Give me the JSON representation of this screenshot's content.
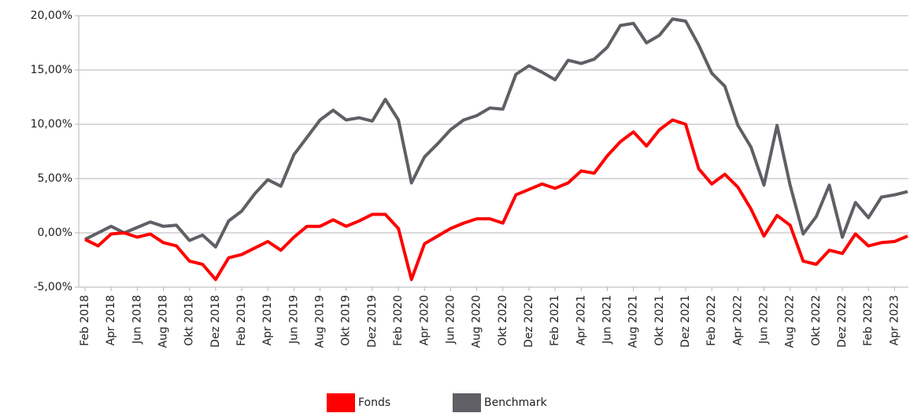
{
  "chart_data": {
    "type": "line",
    "categories": [
      "Feb 2018",
      null,
      "Apr 2018",
      null,
      "Jun 2018",
      null,
      "Aug 2018",
      null,
      "Okt 2018",
      null,
      "Dez 2018",
      null,
      "Feb 2019",
      null,
      "Apr 2019",
      null,
      "Jun 2019",
      null,
      "Aug 2019",
      null,
      "Okt 2019",
      null,
      "Dez 2019",
      null,
      "Feb 2020",
      null,
      "Apr 2020",
      null,
      "Jun 2020",
      null,
      "Aug 2020",
      null,
      "Okt 2020",
      null,
      "Dez 2020",
      null,
      "Feb 2021",
      null,
      "Apr 2021",
      null,
      "Jun 2021",
      null,
      "Aug 2021",
      null,
      "Okt 2021",
      null,
      "Dez 2021",
      null,
      "Feb 2022",
      null,
      "Apr 2022",
      null,
      "Jun 2022",
      null,
      "Aug 2022",
      null,
      "Okt 2022",
      null,
      "Dez 2022",
      null,
      "Feb 2023",
      null,
      "Apr 2023",
      null
    ],
    "series": [
      {
        "name": "Fonds",
        "color": "#ff0000",
        "values": [
          -0.6,
          -1.2,
          -0.1,
          0,
          -0.4,
          -0.1,
          -0.9,
          -1.2,
          -2.6,
          -2.9,
          -4.3,
          -2.3,
          -2.0,
          -1.4,
          -0.8,
          -1.6,
          -0.4,
          0.6,
          0.6,
          1.2,
          0.6,
          1.1,
          1.7,
          1.7,
          0.4,
          -4.3,
          -1.0,
          -0.3,
          0.4,
          0.9,
          1.3,
          1.3,
          0.9,
          3.5,
          4.0,
          4.5,
          4.1,
          4.6,
          5.7,
          5.5,
          7.1,
          8.4,
          9.3,
          8.0,
          9.5,
          10.4,
          10.0,
          5.9,
          4.5,
          5.4,
          4.2,
          2.2,
          -0.3,
          1.6,
          0.7,
          -2.6,
          -2.9,
          -1.6,
          -1.9,
          -0.1,
          -1.2,
          -0.9,
          -0.8,
          -0.3
        ]
      },
      {
        "name": "Benchmark",
        "color": "#5f5f65",
        "values": [
          -0.6,
          0,
          0.6,
          0,
          0.5,
          1.0,
          0.6,
          0.7,
          -0.7,
          -0.2,
          -1.3,
          1.1,
          2.0,
          3.6,
          4.9,
          4.3,
          7.2,
          8.8,
          10.4,
          11.3,
          10.4,
          10.6,
          10.3,
          12.3,
          10.4,
          4.6,
          7.0,
          8.2,
          9.5,
          10.4,
          10.8,
          11.5,
          11.4,
          14.6,
          15.4,
          14.8,
          14.1,
          15.9,
          15.6,
          16.0,
          17.1,
          19.1,
          19.3,
          17.5,
          18.2,
          19.7,
          19.5,
          17.3,
          14.7,
          13.5,
          9.9,
          7.9,
          4.4,
          9.9,
          4.4,
          -0.1,
          1.5,
          4.4,
          -0.4,
          2.8,
          1.4,
          3.3,
          3.5,
          3.8
        ]
      }
    ],
    "ylim": [
      -5,
      20
    ],
    "yticks": [
      {
        "value": -5,
        "label": "-5,00%"
      },
      {
        "value": 0,
        "label": "0,00%"
      },
      {
        "value": 5,
        "label": "5,00%"
      },
      {
        "value": 10,
        "label": "10,00%"
      },
      {
        "value": 15,
        "label": "15,00%"
      },
      {
        "value": 20,
        "label": "20,00%"
      }
    ],
    "grid": true,
    "legend": "bottom"
  }
}
